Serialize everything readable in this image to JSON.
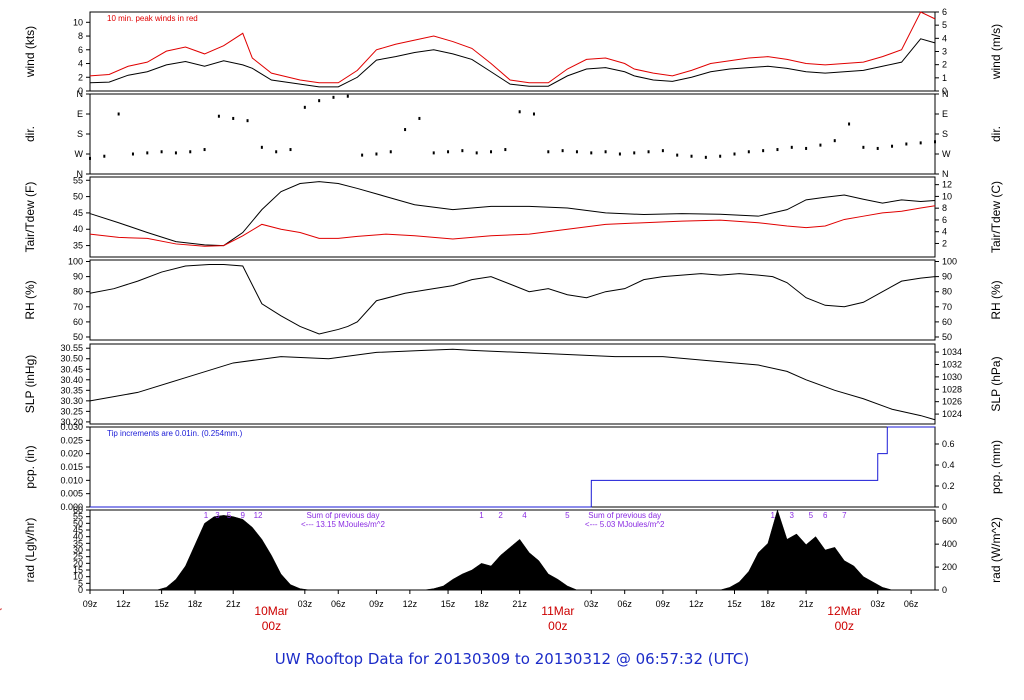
{
  "title": "UW Rooftop Data for 20130309  to  20130312 @ 06:57:32  (UTC)",
  "colors": {
    "black": "#000000",
    "red": "#e00000",
    "blue": "#1a1ad6",
    "purple": "#8a2be2",
    "title": "#1c2cc8",
    "date": "#cc0000"
  },
  "chart_data": [
    {
      "id": "wind",
      "type": "line",
      "ylabel_left": "wind (kts)",
      "ylabel_right": "wind (m/s)",
      "ylim": [
        0,
        11.5
      ],
      "yticks_left": [
        "0",
        "2",
        "4",
        "6",
        "8",
        "10"
      ],
      "ylim_right": [
        0,
        6
      ],
      "yticks_right": [
        "0",
        "1",
        "2",
        "3",
        "4",
        "5",
        "6"
      ],
      "annotation": "10 min. peak winds in red",
      "series": [
        {
          "name": "wind speed",
          "color": "#000000",
          "x": [
            0,
            4,
            8,
            12,
            16,
            20,
            24,
            28,
            32,
            34,
            38,
            44,
            48,
            52,
            56,
            60,
            64,
            68,
            72,
            76,
            80,
            84,
            88,
            92,
            96,
            100,
            104,
            108,
            112,
            114,
            118,
            122,
            126,
            130,
            134,
            138,
            142,
            146,
            150,
            154,
            158,
            162,
            166,
            170,
            174,
            177
          ],
          "values": [
            1.2,
            1.3,
            2.3,
            2.8,
            3.8,
            4.3,
            3.6,
            4.4,
            3.8,
            3.3,
            1.6,
            1.0,
            0.6,
            0.6,
            2.0,
            4.5,
            5.0,
            5.6,
            6.0,
            5.4,
            4.6,
            2.8,
            1.0,
            0.7,
            0.7,
            2.2,
            3.2,
            3.4,
            2.8,
            2.2,
            1.6,
            1.4,
            2.0,
            2.8,
            3.2,
            3.4,
            3.6,
            3.3,
            2.8,
            2.6,
            2.8,
            3.0,
            3.6,
            4.2,
            7.6,
            7.0
          ]
        },
        {
          "name": "10 min peak",
          "color": "#e00000",
          "x": [
            0,
            4,
            8,
            12,
            16,
            20,
            24,
            28,
            32,
            34,
            38,
            44,
            48,
            52,
            56,
            60,
            64,
            68,
            72,
            76,
            80,
            84,
            88,
            92,
            96,
            100,
            104,
            108,
            112,
            114,
            118,
            122,
            126,
            130,
            134,
            138,
            142,
            146,
            150,
            154,
            158,
            162,
            166,
            170,
            174,
            177
          ],
          "values": [
            2.2,
            2.4,
            3.6,
            4.2,
            5.8,
            6.4,
            5.4,
            6.6,
            8.4,
            4.8,
            2.6,
            1.6,
            1.2,
            1.2,
            3.0,
            6.0,
            6.8,
            7.4,
            8.0,
            7.2,
            6.2,
            4.0,
            1.6,
            1.2,
            1.2,
            3.2,
            4.6,
            4.8,
            4.0,
            3.2,
            2.6,
            2.2,
            3.0,
            4.0,
            4.4,
            4.8,
            5.0,
            4.6,
            4.0,
            3.8,
            4.0,
            4.2,
            5.0,
            6.0,
            11.5,
            10.5
          ]
        }
      ]
    },
    {
      "id": "dir",
      "type": "scatter",
      "ylabel_left": "dir.",
      "ylabel_right": "dir.",
      "ylim": [
        0,
        360
      ],
      "yticks_left": [
        "N",
        "E",
        "S",
        "W",
        "N"
      ],
      "yticks_right": [
        "N",
        "E",
        "S",
        "W",
        "N"
      ],
      "series": [
        {
          "name": "wind direction",
          "color": "#000000",
          "x": [
            0,
            3,
            6,
            9,
            12,
            15,
            18,
            21,
            24,
            27,
            30,
            33,
            36,
            39,
            42,
            45,
            48,
            51,
            54,
            57,
            60,
            63,
            66,
            69,
            72,
            75,
            78,
            81,
            84,
            87,
            90,
            93,
            96,
            99,
            102,
            105,
            108,
            111,
            114,
            117,
            120,
            123,
            126,
            129,
            132,
            135,
            138,
            141,
            144,
            147,
            150,
            153,
            156,
            159,
            162,
            165,
            168,
            171,
            174,
            177
          ],
          "values": [
            70,
            80,
            270,
            90,
            95,
            100,
            95,
            100,
            110,
            260,
            250,
            240,
            120,
            100,
            110,
            300,
            330,
            345,
            350,
            85,
            90,
            100,
            200,
            250,
            95,
            100,
            105,
            95,
            100,
            110,
            280,
            270,
            100,
            105,
            100,
            95,
            100,
            90,
            95,
            100,
            105,
            85,
            80,
            75,
            80,
            90,
            100,
            105,
            110,
            120,
            115,
            130,
            150,
            225,
            120,
            115,
            125,
            135,
            140,
            145
          ]
        }
      ]
    },
    {
      "id": "temp",
      "type": "line",
      "ylabel_left": "Tair/Tdew (F)",
      "ylabel_right": "Tair/Tdew (C)",
      "ylim": [
        31.5,
        56
      ],
      "yticks_left": [
        "35",
        "40",
        "45",
        "50",
        "55"
      ],
      "ylim_right": [
        -0.3,
        13.3
      ],
      "yticks_right": [
        "2",
        "4",
        "6",
        "8",
        "10",
        "12"
      ],
      "series": [
        {
          "name": "Tair",
          "color": "#000000",
          "x": [
            0,
            6,
            12,
            18,
            24,
            28,
            32,
            36,
            40,
            44,
            48,
            52,
            56,
            62,
            68,
            76,
            84,
            92,
            100,
            108,
            116,
            124,
            132,
            140,
            146,
            150,
            154,
            158,
            162,
            166,
            170,
            174,
            177
          ],
          "values": [
            44.8,
            42.0,
            39.0,
            36.2,
            35.2,
            35.0,
            39.0,
            46.0,
            51.5,
            54.0,
            54.6,
            54.0,
            52.5,
            50.0,
            47.5,
            46.0,
            47.0,
            47.0,
            46.5,
            45.0,
            44.5,
            44.8,
            44.6,
            44.0,
            46.0,
            49.0,
            49.8,
            50.5,
            49.2,
            48.0,
            49.0,
            48.5,
            48.8
          ]
        },
        {
          "name": "Tdew",
          "color": "#e00000",
          "x": [
            0,
            6,
            12,
            18,
            24,
            28,
            32,
            36,
            40,
            44,
            48,
            52,
            56,
            62,
            68,
            76,
            84,
            92,
            100,
            108,
            116,
            124,
            132,
            140,
            146,
            150,
            154,
            158,
            162,
            166,
            170,
            174,
            177
          ],
          "values": [
            38.5,
            37.5,
            37.2,
            35.5,
            34.8,
            35.0,
            38.0,
            41.5,
            40.0,
            39.0,
            37.2,
            37.2,
            37.8,
            38.5,
            38.0,
            37.0,
            38.0,
            38.5,
            40.0,
            41.5,
            42.0,
            42.5,
            42.8,
            42.0,
            41.0,
            40.5,
            41.0,
            43.0,
            44.0,
            45.0,
            45.5,
            46.5,
            47.2
          ]
        }
      ]
    },
    {
      "id": "rh",
      "type": "line",
      "ylabel_left": "RH (%)",
      "ylabel_right": "RH (%)",
      "ylim": [
        48,
        101
      ],
      "yticks_left": [
        "50",
        "60",
        "70",
        "80",
        "90",
        "100"
      ],
      "ylim_right": [
        48,
        101
      ],
      "yticks_right": [
        "50",
        "60",
        "70",
        "80",
        "90",
        "100"
      ],
      "series": [
        {
          "name": "relative humidity",
          "color": "#000000",
          "x": [
            0,
            5,
            10,
            15,
            20,
            25,
            28,
            32,
            36,
            40,
            44,
            48,
            52,
            54,
            56,
            60,
            66,
            72,
            76,
            80,
            84,
            88,
            92,
            96,
            100,
            104,
            108,
            112,
            116,
            120,
            124,
            128,
            132,
            136,
            140,
            143,
            146,
            150,
            154,
            158,
            162,
            166,
            170,
            174,
            177
          ],
          "values": [
            79,
            82,
            87,
            93,
            97,
            98,
            98,
            97,
            72,
            64,
            57,
            52,
            55,
            57,
            60,
            74,
            79,
            82,
            84,
            88,
            90,
            85,
            80,
            82,
            78,
            76,
            80,
            82,
            88,
            90,
            91,
            92,
            91,
            92,
            91,
            90,
            86,
            76,
            71,
            70,
            73,
            80,
            87,
            89,
            90
          ]
        }
      ]
    },
    {
      "id": "slp",
      "type": "line",
      "ylabel_left": "SLP (inHg)",
      "ylabel_right": "SLP (hPa)",
      "ylim": [
        30.19,
        30.57
      ],
      "yticks_left": [
        "30.20",
        "30.25",
        "30.30",
        "30.35",
        "30.40",
        "30.45",
        "30.50",
        "30.55"
      ],
      "ylim_right": [
        1022.4,
        1035.3
      ],
      "yticks_right": [
        "1024",
        "1026",
        "1028",
        "1030",
        "1032",
        "1034"
      ],
      "series": [
        {
          "name": "sea level pressure",
          "color": "#000000",
          "x": [
            0,
            10,
            20,
            30,
            40,
            50,
            60,
            70,
            76,
            80,
            90,
            100,
            110,
            120,
            130,
            140,
            146,
            150,
            156,
            162,
            168,
            174,
            177
          ],
          "values": [
            30.3,
            30.34,
            30.41,
            30.48,
            30.51,
            30.5,
            30.53,
            30.54,
            30.545,
            30.54,
            30.53,
            30.52,
            30.51,
            30.51,
            30.49,
            30.47,
            30.44,
            30.4,
            30.35,
            30.31,
            30.26,
            30.23,
            30.21
          ]
        }
      ]
    },
    {
      "id": "pcp",
      "type": "line",
      "ylabel_left": "pcp. (in)",
      "ylabel_right": "pcp. (mm)",
      "ylim": [
        0,
        0.03
      ],
      "yticks_left": [
        "0.000",
        "0.005",
        "0.010",
        "0.015",
        "0.020",
        "0.025",
        "0.030"
      ],
      "ylim_right": [
        0,
        0.762
      ],
      "yticks_right": [
        "0",
        "0.2",
        "0.4",
        "0.6"
      ],
      "annotation": "Tip increments are 0.01in. (0.254mm.)",
      "series": [
        {
          "name": "precipitation",
          "color": "#1a1ad6",
          "x": [
            0,
            105,
            105.01,
            165,
            165.01,
            167,
            167.01,
            177
          ],
          "values": [
            0,
            0,
            0.01,
            0.01,
            0.02,
            0.02,
            0.03,
            0.03
          ]
        }
      ]
    },
    {
      "id": "rad",
      "type": "area",
      "ylabel_left": "rad (Lgly/hr)",
      "ylabel_right": "rad (W/m^2)",
      "ylim": [
        0,
        60
      ],
      "yticks_left": [
        "0",
        "5",
        "10",
        "15",
        "20",
        "25",
        "30",
        "35",
        "40",
        "45",
        "50",
        "55",
        "60"
      ],
      "ylim_right": [
        0,
        697.8
      ],
      "yticks_right": [
        "0",
        "200",
        "400",
        "600"
      ],
      "hour_labels": [
        {
          "x": 24.3,
          "text": "1"
        },
        {
          "x": 26.7,
          "text": "3"
        },
        {
          "x": 29.1,
          "text": "5"
        },
        {
          "x": 32.0,
          "text": "9"
        },
        {
          "x": 35.2,
          "text": "12"
        },
        {
          "x": 82.0,
          "text": "1"
        },
        {
          "x": 86.0,
          "text": "2"
        },
        {
          "x": 91.0,
          "text": "4"
        },
        {
          "x": 100.0,
          "text": "5"
        },
        {
          "x": 143.0,
          "text": "1"
        },
        {
          "x": 147.0,
          "text": "3"
        },
        {
          "x": 151.0,
          "text": "5"
        },
        {
          "x": 154.0,
          "text": "6"
        },
        {
          "x": 158.0,
          "text": "7"
        }
      ],
      "daily_sums": [
        {
          "x": 53.0,
          "line1": "Sum of previous day",
          "line2": "<--- 13.15 MJoules/m^2"
        },
        {
          "x": 112.0,
          "line1": "Sum of previous day",
          "line2": "<--- 5.03 MJoules/m^2"
        }
      ],
      "series": [
        {
          "name": "solar radiation",
          "color": "#000000",
          "x": [
            12,
            14,
            16,
            18,
            20,
            22,
            24,
            26,
            28,
            30,
            32,
            34,
            36,
            38,
            40,
            42,
            44,
            46,
            70,
            72,
            74,
            76,
            78,
            80,
            82,
            84,
            86,
            88,
            90,
            92,
            94,
            96,
            98,
            100,
            102,
            132,
            134,
            136,
            138,
            140,
            142,
            144,
            146,
            148,
            150,
            152,
            154,
            156,
            158,
            160,
            162,
            164,
            166,
            168
          ],
          "values": [
            0,
            0,
            2,
            8,
            18,
            34,
            50,
            55,
            56,
            55,
            53,
            47,
            38,
            26,
            12,
            4,
            1,
            0,
            0,
            1,
            3,
            8,
            12,
            15,
            20,
            18,
            26,
            32,
            38,
            28,
            22,
            12,
            8,
            3,
            0,
            0,
            2,
            6,
            14,
            28,
            35,
            60,
            38,
            42,
            34,
            40,
            30,
            32,
            22,
            18,
            10,
            6,
            2,
            0
          ]
        }
      ]
    }
  ],
  "x_axis": {
    "range": [
      0,
      177
    ],
    "ticks": [
      {
        "x": 0,
        "label": "09z"
      },
      {
        "x": 7,
        "label": "12z"
      },
      {
        "x": 15,
        "label": "15z"
      },
      {
        "x": 22,
        "label": "18z"
      },
      {
        "x": 30,
        "label": "21z"
      },
      {
        "x": 45,
        "label": "03z"
      },
      {
        "x": 52,
        "label": "06z"
      },
      {
        "x": 60,
        "label": "09z"
      },
      {
        "x": 67,
        "label": "12z"
      },
      {
        "x": 75,
        "label": "15z"
      },
      {
        "x": 82,
        "label": "18z"
      },
      {
        "x": 90,
        "label": "21z"
      },
      {
        "x": 105,
        "label": "03z"
      },
      {
        "x": 112,
        "label": "06z"
      },
      {
        "x": 120,
        "label": "09z"
      },
      {
        "x": 127,
        "label": "12z"
      },
      {
        "x": 135,
        "label": "15z"
      },
      {
        "x": 142,
        "label": "18z"
      },
      {
        "x": 150,
        "label": "21z"
      },
      {
        "x": 165,
        "label": "03z"
      },
      {
        "x": 172,
        "label": "06z"
      }
    ],
    "date_labels": [
      {
        "x": -22,
        "line1": "10Mar",
        "line2": "00z"
      },
      {
        "x": 38,
        "line1": "10Mar",
        "line2": "00z"
      },
      {
        "x": 98,
        "line1": "11Mar",
        "line2": "00z"
      },
      {
        "x": 158,
        "line1": "12Mar",
        "line2": "00z"
      }
    ]
  }
}
